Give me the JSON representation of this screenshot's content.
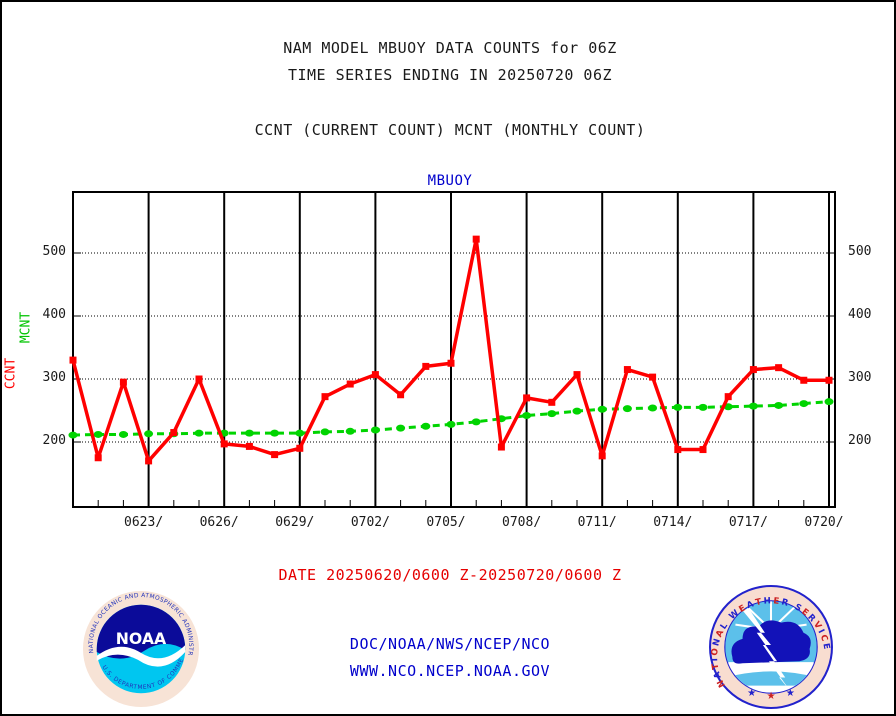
{
  "header": {
    "line1": "NAM MODEL MBUOY DATA COUNTS for 06Z",
    "line2": "TIME SERIES ENDING IN 20250720 06Z",
    "line3": "CCNT (CURRENT COUNT) MCNT (MONTHLY COUNT)"
  },
  "chart": {
    "title": "MBUOY",
    "ylabel_ccnt": "CCNT",
    "ylabel_mcnt": "MCNT",
    "chart_data": {
      "type": "line",
      "title": "MBUOY",
      "xlabel": "",
      "ylabel_left": "CCNT",
      "ylabel_left2": "MCNT",
      "grid": true,
      "ylim": [
        100,
        600
      ],
      "yticks": [
        200,
        300,
        400,
        500
      ],
      "xtick_labels": [
        "0623/",
        "0626/",
        "0629/",
        "0702/",
        "0705/",
        "0708/",
        "0711/",
        "0714/",
        "0717/",
        "0720/"
      ],
      "xtick_day_indices": [
        3,
        6,
        9,
        12,
        15,
        18,
        21,
        24,
        27,
        30
      ],
      "x_dates": [
        "0620",
        "0621",
        "0622",
        "0623",
        "0624",
        "0625",
        "0626",
        "0627",
        "0628",
        "0629",
        "0630",
        "0701",
        "0702",
        "0703",
        "0704",
        "0705",
        "0706",
        "0707",
        "0708",
        "0709",
        "0710",
        "0711",
        "0712",
        "0713",
        "0714",
        "0715",
        "0716",
        "0717",
        "0718",
        "0719",
        "0720"
      ],
      "series": [
        {
          "name": "CCNT",
          "style": "solid",
          "color": "#ff0000",
          "values": [
            330,
            175,
            295,
            170,
            215,
            300,
            197,
            193,
            180,
            190,
            272,
            292,
            307,
            275,
            320,
            325,
            522,
            192,
            270,
            263,
            307,
            178,
            315,
            303,
            188,
            188,
            272,
            315,
            318,
            298,
            298
          ]
        },
        {
          "name": "MCNT",
          "style": "dashed",
          "color": "#00d400",
          "values": [
            211,
            212,
            212,
            213,
            213,
            214,
            214,
            214,
            214,
            214,
            216,
            217,
            219,
            222,
            225,
            228,
            232,
            237,
            242,
            245,
            249,
            252,
            253,
            254,
            255,
            255,
            256,
            257,
            258,
            261,
            264
          ]
        }
      ]
    }
  },
  "footer": {
    "date_range": "DATE 20250620/0600 Z-20250720/0600 Z",
    "org": "DOC/NOAA/NWS/NCEP/NCO",
    "url": "WWW.NCO.NCEP.NOAA.GOV"
  },
  "logos": {
    "noaa": {
      "center_text": "NOAA",
      "ring_top": "NATIONAL OCEANIC AND ATMOSPHERIC ADMINISTRATION",
      "ring_bottom": "U.S. DEPARTMENT OF COMMERCE"
    },
    "nws": {
      "ring": "NATIONAL WEATHER SERVICE"
    }
  },
  "colors": {
    "ccnt_red": "#ff0000",
    "mcnt_green": "#00d400",
    "link_blue": "#0000cc",
    "date_red": "#e60000",
    "axis_black": "#000000"
  }
}
